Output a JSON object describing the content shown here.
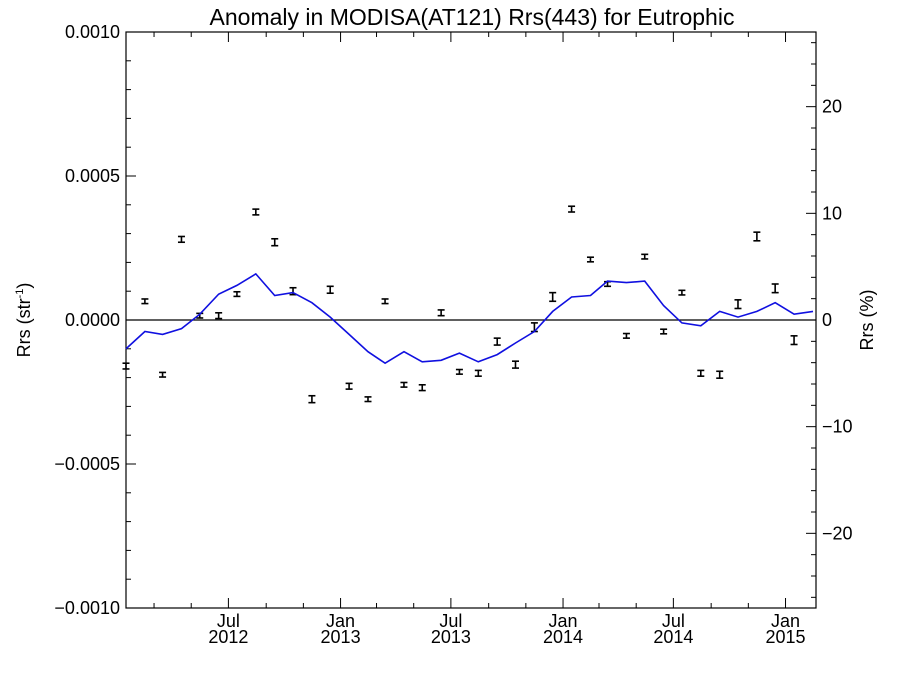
{
  "chart_data": {
    "type": "line",
    "title": "Anomaly in MODISA(AT121) Rrs(443) for Eutrophic",
    "ylabel_left": "Rrs (str",
    "ylabel_left_sup": "-1",
    "ylabel_left_close": ")",
    "ylabel_right": "Rrs (%)",
    "x_range": [
      "2012-01-15",
      "2015-02-20"
    ],
    "ylim_left": [
      -0.001,
      0.001
    ],
    "ylim_right": [
      -27,
      27
    ],
    "left_ticks": [
      {
        "value": 0.001,
        "label": "0.0010"
      },
      {
        "value": 0.0005,
        "label": "0.0005"
      },
      {
        "value": 0.0,
        "label": "0.0000"
      },
      {
        "value": -0.0005,
        "label": "−0.0005"
      },
      {
        "value": -0.001,
        "label": "−0.0010"
      }
    ],
    "right_ticks": [
      {
        "value": 20,
        "label": "20"
      },
      {
        "value": 10,
        "label": "10"
      },
      {
        "value": 0,
        "label": "0"
      },
      {
        "value": -10,
        "label": "−10"
      },
      {
        "value": -20,
        "label": "−20"
      }
    ],
    "x_ticks": [
      {
        "date": "2012-07-01",
        "month": "Jul",
        "year": "2012"
      },
      {
        "date": "2013-01-01",
        "month": "Jan",
        "year": "2013"
      },
      {
        "date": "2013-07-01",
        "month": "Jul",
        "year": "2013"
      },
      {
        "date": "2014-01-01",
        "month": "Jan",
        "year": "2014"
      },
      {
        "date": "2014-07-01",
        "month": "Jul",
        "year": "2014"
      },
      {
        "date": "2015-01-01",
        "month": "Jan",
        "year": "2015"
      }
    ],
    "minor_month_ticks": [
      "2012-03-01",
      "2012-05-01",
      "2012-09-01",
      "2012-11-01",
      "2013-03-01",
      "2013-05-01",
      "2013-09-01",
      "2013-11-01",
      "2014-03-01",
      "2014-05-01",
      "2014-09-01",
      "2014-11-01"
    ],
    "colors": {
      "line": "#1010e0",
      "points": "#000000",
      "zero_line": "#000000"
    },
    "series": [
      {
        "type": "line",
        "x": [
          "2012-01-15",
          "2012-02-15",
          "2012-03-15",
          "2012-04-15",
          "2012-05-15",
          "2012-06-15",
          "2012-07-15",
          "2012-08-15",
          "2012-09-15",
          "2012-10-15",
          "2012-11-15",
          "2012-12-15",
          "2013-01-15",
          "2013-02-15",
          "2013-03-15",
          "2013-04-15",
          "2013-05-15",
          "2013-06-15",
          "2013-07-15",
          "2013-08-15",
          "2013-09-15",
          "2013-10-15",
          "2013-11-15",
          "2013-12-15",
          "2014-01-15",
          "2014-02-15",
          "2014-03-15",
          "2014-04-15",
          "2014-05-15",
          "2014-06-15",
          "2014-07-15",
          "2014-08-15",
          "2014-09-15",
          "2014-10-15",
          "2014-11-15",
          "2014-12-15",
          "2015-01-15",
          "2015-02-15"
        ],
        "values": [
          -0.0001,
          -4e-05,
          -5e-05,
          -3e-05,
          2e-05,
          9e-05,
          0.00012,
          0.00016,
          8.5e-05,
          9.5e-05,
          6e-05,
          1e-05,
          -5e-05,
          -0.00011,
          -0.00015,
          -0.00011,
          -0.000145,
          -0.00014,
          -0.000115,
          -0.000145,
          -0.00012,
          -8e-05,
          -4e-05,
          3e-05,
          8e-05,
          8.5e-05,
          0.000135,
          0.00013,
          0.000135,
          5e-05,
          -1e-05,
          -2e-05,
          3e-05,
          1e-05,
          3e-05,
          6e-05,
          2e-05,
          3e-05
        ]
      },
      {
        "type": "errorbar",
        "x": [
          "2012-01-15",
          "2012-02-15",
          "2012-03-15",
          "2012-04-15",
          "2012-05-15",
          "2012-06-15",
          "2012-07-15",
          "2012-08-15",
          "2012-09-15",
          "2012-10-15",
          "2012-11-15",
          "2012-12-15",
          "2013-01-15",
          "2013-02-15",
          "2013-03-15",
          "2013-04-15",
          "2013-05-15",
          "2013-06-15",
          "2013-07-15",
          "2013-08-15",
          "2013-09-15",
          "2013-10-15",
          "2013-11-15",
          "2013-12-15",
          "2014-01-15",
          "2014-02-15",
          "2014-03-15",
          "2014-04-15",
          "2014-05-15",
          "2014-06-15",
          "2014-07-15",
          "2014-08-15",
          "2014-09-15",
          "2014-10-15",
          "2014-11-15",
          "2014-12-15",
          "2015-01-15"
        ],
        "values": [
          -0.00016,
          6.5e-05,
          -0.00019,
          0.00028,
          1.5e-05,
          1.5e-05,
          9e-05,
          0.000375,
          0.00027,
          0.0001,
          -0.000275,
          0.000105,
          -0.00023,
          -0.000275,
          6.5e-05,
          -0.000225,
          -0.000235,
          2.5e-05,
          -0.00018,
          -0.000185,
          -7.5e-05,
          -0.000155,
          -2.5e-05,
          8e-05,
          0.000385,
          0.00021,
          0.000125,
          -5.5e-05,
          0.00022,
          -4e-05,
          9.5e-05,
          -0.000185,
          -0.00019,
          5.5e-05,
          0.00029,
          0.00011,
          -7e-05
        ],
        "errors": [
          1e-05,
          8e-06,
          8e-06,
          1e-05,
          8e-06,
          1e-05,
          8e-06,
          1e-05,
          1.2e-05,
          1.2e-05,
          1.2e-05,
          1.2e-05,
          1e-05,
          8e-06,
          8e-06,
          8e-06,
          1e-05,
          1e-05,
          8e-06,
          1e-05,
          1.2e-05,
          1.2e-05,
          1.5e-05,
          1.5e-05,
          1e-05,
          8e-06,
          8e-06,
          8e-06,
          8e-06,
          8e-06,
          8e-06,
          1e-05,
          1.2e-05,
          1.5e-05,
          1.5e-05,
          1.5e-05,
          1.5e-05
        ]
      }
    ]
  }
}
